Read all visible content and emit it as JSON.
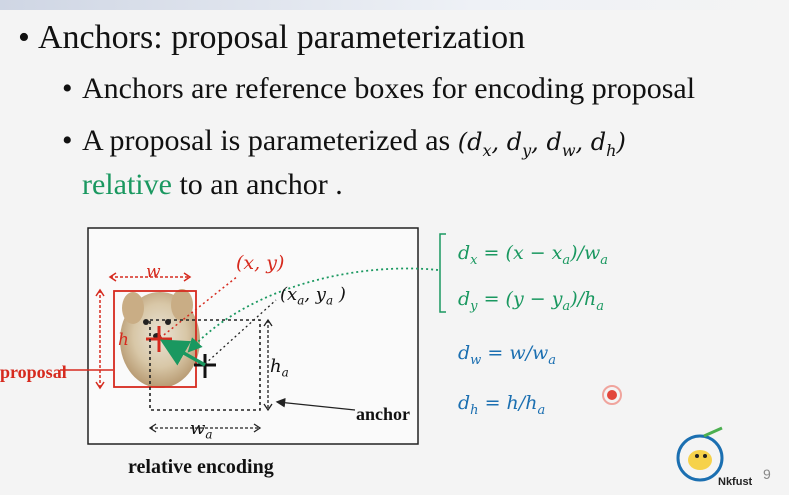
{
  "slide": {
    "title": "Anchors: proposal parameterization",
    "bullet1": "Anchors are reference boxes for encoding proposal",
    "bullet2_prefix": "A proposal is parameterized as ",
    "bullet2_math": "(dx, dy, dw, dh)",
    "bullet2_green": "relative",
    "bullet2_suffix": " to an anchor .",
    "page_number": "9"
  },
  "diagram": {
    "w_label": "w",
    "h_label": "h",
    "xy_label": "(x, y)",
    "xaya_label": "(xa, ya )",
    "ha_label": "ha",
    "wa_label": "wa",
    "proposal_label": "proposal",
    "anchor_label": "anchor",
    "caption": "relative encoding"
  },
  "equations": {
    "dx": "dx = (x − xa)/wa",
    "dy": "dy = (y − ya)/ha",
    "dw": "dw = w/wa",
    "dh": "dh = h/ha"
  },
  "logo": {
    "text": "Nkfust"
  },
  "colors": {
    "green": "#1a9860",
    "blue": "#1b6fb1",
    "red": "#d62a1e"
  }
}
